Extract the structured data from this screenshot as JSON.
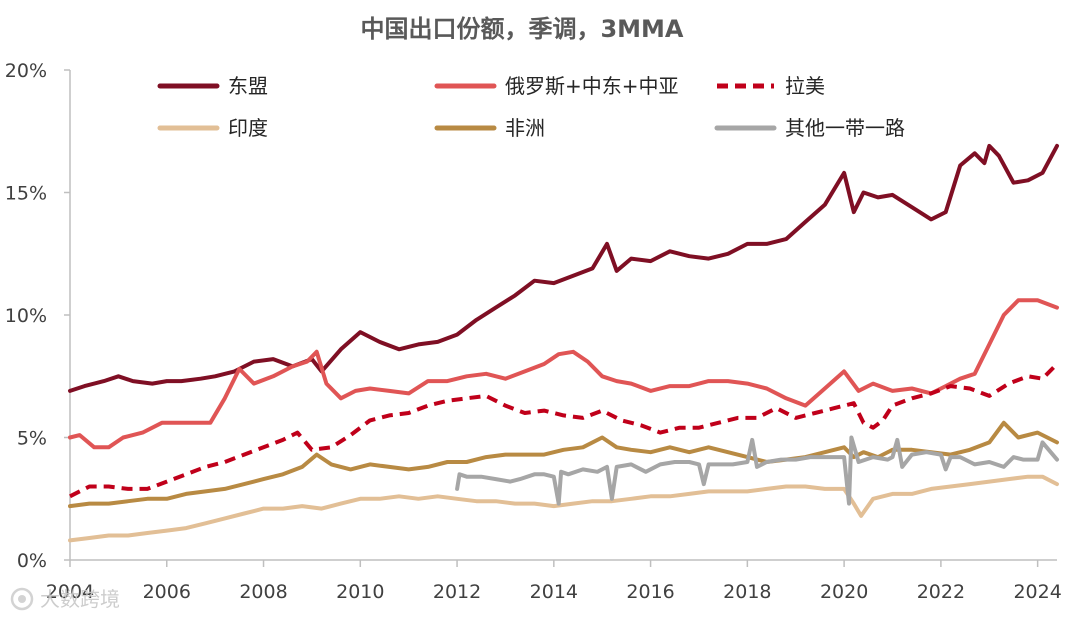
{
  "chart_data": {
    "type": "line",
    "title": "中国出口份额，季调，3MMA",
    "xlabel": "",
    "ylabel": "",
    "xlim": [
      2004,
      2024.4
    ],
    "ylim": [
      0,
      20
    ],
    "y_ticks": [
      "0%",
      "5%",
      "10%",
      "15%",
      "20%"
    ],
    "y_tick_values": [
      0,
      5,
      10,
      15,
      20
    ],
    "x_ticks": [
      "2004",
      "2006",
      "2008",
      "2010",
      "2012",
      "2014",
      "2016",
      "2018",
      "2020",
      "2022",
      "2024"
    ],
    "x_tick_values": [
      2004,
      2006,
      2008,
      2010,
      2012,
      2014,
      2016,
      2018,
      2020,
      2022,
      2024
    ],
    "grid": false,
    "legend_position": "top",
    "series": [
      {
        "name": "东盟",
        "color": "#7f0f24",
        "dash": "solid",
        "x": [
          2004.0,
          2004.3,
          2004.7,
          2005.0,
          2005.3,
          2005.7,
          2006.0,
          2006.3,
          2006.7,
          2007.0,
          2007.4,
          2007.8,
          2008.2,
          2008.6,
          2009.0,
          2009.2,
          2009.6,
          2010.0,
          2010.4,
          2010.8,
          2011.2,
          2011.6,
          2012.0,
          2012.4,
          2012.8,
          2013.2,
          2013.6,
          2014.0,
          2014.4,
          2014.8,
          2015.1,
          2015.3,
          2015.6,
          2016.0,
          2016.4,
          2016.8,
          2017.2,
          2017.6,
          2018.0,
          2018.4,
          2018.8,
          2019.2,
          2019.6,
          2020.0,
          2020.2,
          2020.4,
          2020.7,
          2021.0,
          2021.4,
          2021.8,
          2022.1,
          2022.4,
          2022.7,
          2022.9,
          2023.0,
          2023.2,
          2023.5,
          2023.8,
          2024.1,
          2024.4
        ],
        "values": [
          6.9,
          7.1,
          7.3,
          7.5,
          7.3,
          7.2,
          7.3,
          7.3,
          7.4,
          7.5,
          7.7,
          8.1,
          8.2,
          7.9,
          8.2,
          7.7,
          8.6,
          9.3,
          8.9,
          8.6,
          8.8,
          8.9,
          9.2,
          9.8,
          10.3,
          10.8,
          11.4,
          11.3,
          11.6,
          11.9,
          12.9,
          11.8,
          12.3,
          12.2,
          12.6,
          12.4,
          12.3,
          12.5,
          12.9,
          12.9,
          13.1,
          13.8,
          14.5,
          15.8,
          14.2,
          15.0,
          14.8,
          14.9,
          14.4,
          13.9,
          14.2,
          16.1,
          16.6,
          16.2,
          16.9,
          16.5,
          15.4,
          15.5,
          15.8,
          16.9
        ]
      },
      {
        "name": "俄罗斯+中东+中亚",
        "color": "#e05555",
        "dash": "solid",
        "x": [
          2004.0,
          2004.2,
          2004.5,
          2004.8,
          2005.1,
          2005.5,
          2005.9,
          2006.2,
          2006.5,
          2006.9,
          2007.2,
          2007.5,
          2007.8,
          2008.2,
          2008.6,
          2008.9,
          2009.1,
          2009.3,
          2009.6,
          2009.9,
          2010.2,
          2010.6,
          2011.0,
          2011.4,
          2011.8,
          2012.2,
          2012.6,
          2013.0,
          2013.4,
          2013.8,
          2014.1,
          2014.4,
          2014.7,
          2015.0,
          2015.3,
          2015.6,
          2016.0,
          2016.4,
          2016.8,
          2017.2,
          2017.6,
          2018.0,
          2018.4,
          2018.8,
          2019.2,
          2019.6,
          2020.0,
          2020.3,
          2020.6,
          2021.0,
          2021.4,
          2021.8,
          2022.1,
          2022.4,
          2022.7,
          2023.0,
          2023.3,
          2023.6,
          2024.0,
          2024.4
        ],
        "values": [
          5.0,
          5.1,
          4.6,
          4.6,
          5.0,
          5.2,
          5.6,
          5.6,
          5.6,
          5.6,
          6.6,
          7.8,
          7.2,
          7.5,
          7.9,
          8.1,
          8.5,
          7.2,
          6.6,
          6.9,
          7.0,
          6.9,
          6.8,
          7.3,
          7.3,
          7.5,
          7.6,
          7.4,
          7.7,
          8.0,
          8.4,
          8.5,
          8.1,
          7.5,
          7.3,
          7.2,
          6.9,
          7.1,
          7.1,
          7.3,
          7.3,
          7.2,
          7.0,
          6.6,
          6.3,
          7.0,
          7.7,
          6.9,
          7.2,
          6.9,
          7.0,
          6.8,
          7.1,
          7.4,
          7.6,
          8.8,
          10.0,
          10.6,
          10.6,
          10.3
        ]
      },
      {
        "name": "拉美",
        "color": "#c0001a",
        "dash": "dashed",
        "x": [
          2004.0,
          2004.4,
          2004.8,
          2005.2,
          2005.6,
          2006.0,
          2006.4,
          2006.8,
          2007.2,
          2007.6,
          2008.0,
          2008.4,
          2008.7,
          2009.0,
          2009.4,
          2009.8,
          2010.2,
          2010.6,
          2011.0,
          2011.4,
          2011.8,
          2012.2,
          2012.6,
          2013.0,
          2013.4,
          2013.8,
          2014.2,
          2014.6,
          2015.0,
          2015.4,
          2015.8,
          2016.2,
          2016.6,
          2017.0,
          2017.4,
          2017.8,
          2018.2,
          2018.6,
          2019.0,
          2019.4,
          2019.8,
          2020.2,
          2020.4,
          2020.6,
          2020.8,
          2021.0,
          2021.4,
          2021.8,
          2022.2,
          2022.6,
          2023.0,
          2023.4,
          2023.8,
          2024.1,
          2024.4
        ],
        "values": [
          2.6,
          3.0,
          3.0,
          2.9,
          2.9,
          3.2,
          3.5,
          3.8,
          4.0,
          4.3,
          4.6,
          4.9,
          5.2,
          4.5,
          4.6,
          5.1,
          5.7,
          5.9,
          6.0,
          6.3,
          6.5,
          6.6,
          6.7,
          6.3,
          6.0,
          6.1,
          5.9,
          5.8,
          6.1,
          5.7,
          5.5,
          5.2,
          5.4,
          5.4,
          5.6,
          5.8,
          5.8,
          6.2,
          5.8,
          6.0,
          6.2,
          6.4,
          5.6,
          5.4,
          5.7,
          6.3,
          6.6,
          6.8,
          7.1,
          7.0,
          6.7,
          7.2,
          7.5,
          7.4,
          8.0
        ]
      },
      {
        "name": "印度",
        "color": "#e2bf96",
        "dash": "solid",
        "x": [
          2004.0,
          2004.4,
          2004.8,
          2005.2,
          2005.6,
          2006.0,
          2006.4,
          2006.8,
          2007.2,
          2007.6,
          2008.0,
          2008.4,
          2008.8,
          2009.2,
          2009.6,
          2010.0,
          2010.4,
          2010.8,
          2011.2,
          2011.6,
          2012.0,
          2012.4,
          2012.8,
          2013.2,
          2013.6,
          2014.0,
          2014.4,
          2014.8,
          2015.2,
          2015.6,
          2016.0,
          2016.4,
          2016.8,
          2017.2,
          2017.6,
          2018.0,
          2018.4,
          2018.8,
          2019.2,
          2019.6,
          2020.0,
          2020.2,
          2020.35,
          2020.6,
          2021.0,
          2021.4,
          2021.8,
          2022.2,
          2022.6,
          2023.0,
          2023.4,
          2023.8,
          2024.1,
          2024.4
        ],
        "values": [
          0.8,
          0.9,
          1.0,
          1.0,
          1.1,
          1.2,
          1.3,
          1.5,
          1.7,
          1.9,
          2.1,
          2.1,
          2.2,
          2.1,
          2.3,
          2.5,
          2.5,
          2.6,
          2.5,
          2.6,
          2.5,
          2.4,
          2.4,
          2.3,
          2.3,
          2.2,
          2.3,
          2.4,
          2.4,
          2.5,
          2.6,
          2.6,
          2.7,
          2.8,
          2.8,
          2.8,
          2.9,
          3.0,
          3.0,
          2.9,
          2.9,
          2.3,
          1.8,
          2.5,
          2.7,
          2.7,
          2.9,
          3.0,
          3.1,
          3.2,
          3.3,
          3.4,
          3.4,
          3.1
        ]
      },
      {
        "name": "非洲",
        "color": "#b88a43",
        "dash": "solid",
        "x": [
          2004.0,
          2004.4,
          2004.8,
          2005.2,
          2005.6,
          2006.0,
          2006.4,
          2006.8,
          2007.2,
          2007.6,
          2008.0,
          2008.4,
          2008.8,
          2009.1,
          2009.4,
          2009.8,
          2010.2,
          2010.6,
          2011.0,
          2011.4,
          2011.8,
          2012.2,
          2012.6,
          2013.0,
          2013.4,
          2013.8,
          2014.2,
          2014.6,
          2015.0,
          2015.3,
          2015.6,
          2016.0,
          2016.4,
          2016.8,
          2017.2,
          2017.6,
          2018.0,
          2018.4,
          2018.8,
          2019.2,
          2019.6,
          2020.0,
          2020.2,
          2020.4,
          2020.7,
          2021.0,
          2021.4,
          2021.8,
          2022.2,
          2022.6,
          2023.0,
          2023.3,
          2023.6,
          2024.0,
          2024.4
        ],
        "values": [
          2.2,
          2.3,
          2.3,
          2.4,
          2.5,
          2.5,
          2.7,
          2.8,
          2.9,
          3.1,
          3.3,
          3.5,
          3.8,
          4.3,
          3.9,
          3.7,
          3.9,
          3.8,
          3.7,
          3.8,
          4.0,
          4.0,
          4.2,
          4.3,
          4.3,
          4.3,
          4.5,
          4.6,
          5.0,
          4.6,
          4.5,
          4.4,
          4.6,
          4.4,
          4.6,
          4.4,
          4.2,
          4.0,
          4.1,
          4.2,
          4.4,
          4.6,
          4.2,
          4.4,
          4.2,
          4.5,
          4.5,
          4.4,
          4.3,
          4.5,
          4.8,
          5.6,
          5.0,
          5.2,
          4.8
        ]
      },
      {
        "name": "其他一带一路",
        "color": "#a6a6a6",
        "dash": "solid",
        "x": [
          2012.0,
          2012.05,
          2012.2,
          2012.5,
          2012.8,
          2013.1,
          2013.3,
          2013.6,
          2013.8,
          2014.0,
          2014.1,
          2014.15,
          2014.3,
          2014.6,
          2014.9,
          2015.1,
          2015.2,
          2015.3,
          2015.6,
          2015.9,
          2016.2,
          2016.5,
          2016.8,
          2017.0,
          2017.1,
          2017.2,
          2017.4,
          2017.7,
          2018.0,
          2018.1,
          2018.2,
          2018.4,
          2018.7,
          2019.0,
          2019.3,
          2019.6,
          2019.8,
          2020.0,
          2020.1,
          2020.15,
          2020.3,
          2020.6,
          2020.9,
          2021.0,
          2021.1,
          2021.2,
          2021.4,
          2021.7,
          2022.0,
          2022.1,
          2022.2,
          2022.4,
          2022.7,
          2023.0,
          2023.3,
          2023.5,
          2023.7,
          2024.0,
          2024.1,
          2024.4
        ],
        "values": [
          2.9,
          3.5,
          3.4,
          3.4,
          3.3,
          3.2,
          3.3,
          3.5,
          3.5,
          3.4,
          2.3,
          3.6,
          3.5,
          3.7,
          3.6,
          3.8,
          2.5,
          3.8,
          3.9,
          3.6,
          3.9,
          4.0,
          4.0,
          3.9,
          3.1,
          3.9,
          3.9,
          3.9,
          4.0,
          4.9,
          3.8,
          4.0,
          4.1,
          4.1,
          4.2,
          4.2,
          4.2,
          4.2,
          2.3,
          5.0,
          4.0,
          4.2,
          4.1,
          4.2,
          4.9,
          3.8,
          4.3,
          4.4,
          4.3,
          3.7,
          4.2,
          4.2,
          3.9,
          4.0,
          3.8,
          4.2,
          4.1,
          4.1,
          4.8,
          4.1
        ]
      }
    ]
  },
  "watermark": "大数跨境"
}
